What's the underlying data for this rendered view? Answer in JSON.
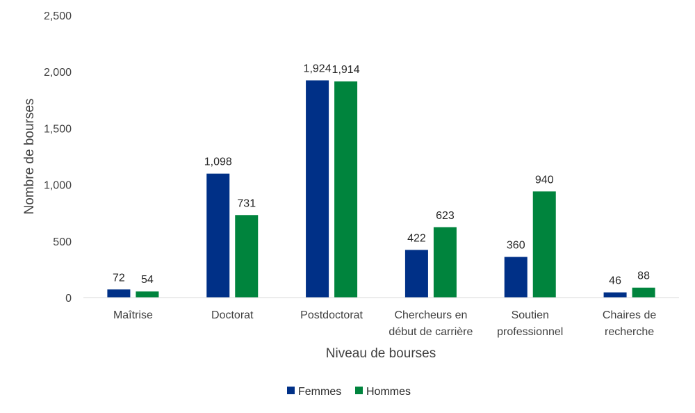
{
  "chart_data": {
    "type": "bar",
    "title": "",
    "xlabel": "Niveau de bourses",
    "ylabel": "Nombre de bourses",
    "ylim": [
      0,
      2500
    ],
    "yticks": [
      "0",
      "500",
      "1,000",
      "1,500",
      "2,000",
      "2,500"
    ],
    "ytick_values": [
      0,
      500,
      1000,
      1500,
      2000,
      2500
    ],
    "categories": [
      [
        "Maîtrise"
      ],
      [
        "Doctorat"
      ],
      [
        "Postdoctorat"
      ],
      [
        "Chercheurs en",
        "début de carrière"
      ],
      [
        "Soutien",
        "professionnel"
      ],
      [
        "Chaires de",
        "recherche"
      ]
    ],
    "series": [
      {
        "name": "Femmes",
        "color": "#003087",
        "values": [
          72,
          1098,
          1924,
          422,
          360,
          46
        ],
        "labels": [
          "72",
          "1,098",
          "1,924",
          "422",
          "360",
          "46"
        ]
      },
      {
        "name": "Hommes",
        "color": "#00843D",
        "values": [
          54,
          731,
          1914,
          623,
          940,
          88
        ],
        "labels": [
          "54",
          "731",
          "1,914",
          "623",
          "940",
          "88"
        ]
      }
    ],
    "grid": false,
    "legend_position": "bottom"
  }
}
